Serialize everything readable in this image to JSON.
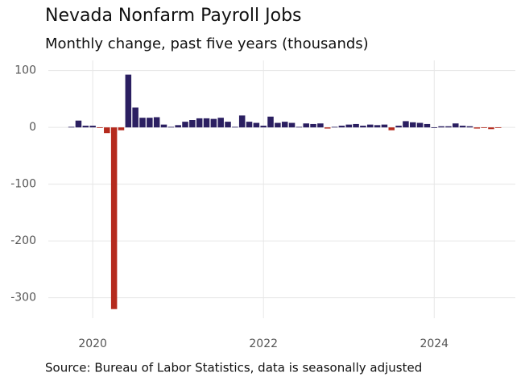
{
  "chart_data": {
    "type": "bar",
    "title": "Nevada Nonfarm Payroll Jobs",
    "subtitle": "Monthly change, past five years (thousands)",
    "source": "Source: Bureau of Labor Statistics, data is seasonally adjusted",
    "x": [
      2019.75,
      2019.8333,
      2019.9167,
      2020.0,
      2020.0833,
      2020.1667,
      2020.25,
      2020.3333,
      2020.4167,
      2020.5,
      2020.5833,
      2020.6667,
      2020.75,
      2020.8333,
      2020.9167,
      2021.0,
      2021.0833,
      2021.1667,
      2021.25,
      2021.3333,
      2021.4167,
      2021.5,
      2021.5833,
      2021.6667,
      2021.75,
      2021.8333,
      2021.9167,
      2022.0,
      2022.0833,
      2022.1667,
      2022.25,
      2022.3333,
      2022.4167,
      2022.5,
      2022.5833,
      2022.6667,
      2022.75,
      2022.8333,
      2022.9167,
      2023.0,
      2023.0833,
      2023.1667,
      2023.25,
      2023.3333,
      2023.4167,
      2023.5,
      2023.5833,
      2023.6667,
      2023.75,
      2023.8333,
      2023.9167,
      2024.0,
      2024.0833,
      2024.1667,
      2024.25,
      2024.3333,
      2024.4167,
      2024.5,
      2024.5833,
      2024.6667,
      2024.75
    ],
    "values": [
      1,
      12,
      3,
      3,
      -1,
      -10,
      -320,
      -5,
      93,
      35,
      17,
      17,
      18,
      5,
      1,
      4,
      10,
      13,
      16,
      16,
      15,
      17,
      10,
      1,
      21,
      10,
      8,
      3,
      19,
      8,
      10,
      8,
      1,
      7,
      6,
      7,
      -2,
      1,
      3,
      5,
      6,
      3,
      5,
      4,
      5,
      -5,
      3,
      11,
      9,
      8,
      6,
      0,
      2,
      2,
      7,
      3,
      2,
      -2,
      -1,
      -3,
      -1
    ],
    "positive_color": "#2b1f61",
    "negative_color": "#b52a1d",
    "xlim": [
      2019.48,
      2024.95
    ],
    "xticks": [
      2020,
      2022,
      2024
    ],
    "ylim": [
      -336,
      118
    ],
    "yticks": [
      100,
      0,
      -100,
      -200,
      -300
    ],
    "grid": true
  }
}
